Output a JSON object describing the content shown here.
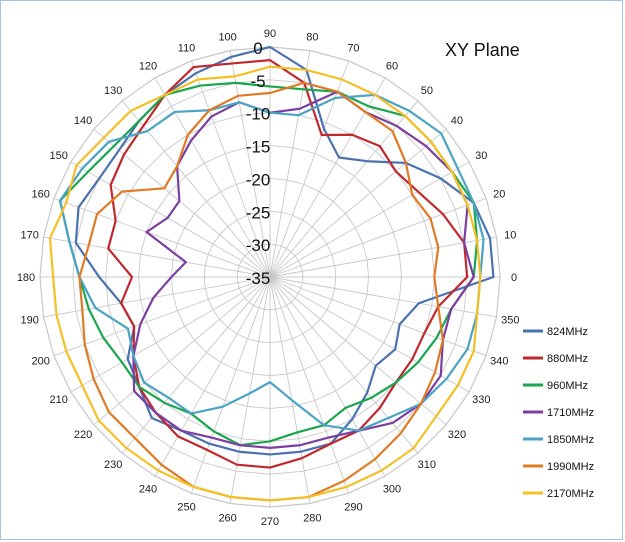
{
  "chart_data": {
    "type": "radar",
    "title": "XY Plane",
    "angles_deg": [
      0,
      10,
      20,
      30,
      40,
      50,
      60,
      70,
      80,
      90,
      100,
      110,
      120,
      130,
      140,
      150,
      160,
      170,
      180,
      190,
      200,
      210,
      220,
      230,
      240,
      250,
      260,
      270,
      280,
      290,
      300,
      310,
      320,
      330,
      340,
      350
    ],
    "angle_tick_labels": [
      "0",
      "10",
      "20",
      "30",
      "40",
      "50",
      "60",
      "70",
      "80",
      "90",
      "100",
      "110",
      "120",
      "130",
      "140",
      "150",
      "160",
      "170",
      "180",
      "190",
      "200",
      "210",
      "220",
      "230",
      "240",
      "250",
      "260",
      "270",
      "280",
      "290",
      "300",
      "310",
      "320",
      "330",
      "340",
      "350"
    ],
    "radial_ticks": [
      0,
      -5,
      -10,
      -15,
      -20,
      -25,
      -30,
      -35
    ],
    "radial_tick_labels": [
      "0",
      "-5",
      "-10",
      "-15",
      "-20",
      "-25",
      "-30",
      "-35"
    ],
    "rlim": [
      -35,
      0
    ],
    "grid": true,
    "legend_position": "bottom-right",
    "series": [
      {
        "name": "824MHz",
        "color": "#4a72b0",
        "values": [
          -1,
          -1,
          -2,
          -5,
          -8,
          -12,
          -14,
          -11,
          -3,
          0,
          -1,
          -2,
          -3,
          -4,
          -5,
          -5,
          -4,
          -5,
          -9,
          -12,
          -13,
          -10,
          -9,
          -7,
          -8,
          -8,
          -8,
          -8,
          -8,
          -8,
          -10,
          -12,
          -14,
          -13,
          -14,
          -12
        ]
      },
      {
        "name": "880MHz",
        "color": "#c0282e",
        "values": [
          -5,
          -5,
          -7,
          -9,
          -10,
          -9,
          -10,
          -12,
          -5,
          -2,
          -2,
          -1,
          -3,
          -5,
          -6,
          -7,
          -10,
          -10,
          -14,
          -12,
          -13,
          -11,
          -9,
          -8,
          -7,
          -7,
          -6,
          -6,
          -7,
          -8,
          -8,
          -9,
          -10,
          -10,
          -10,
          -9
        ]
      },
      {
        "name": "960MHz",
        "color": "#1aa64e",
        "values": [
          -4,
          -3,
          -2,
          -3,
          -3,
          -3,
          -5,
          -5,
          -6,
          -6,
          -5,
          -4,
          -3,
          -4,
          -4,
          -3,
          -1,
          -4,
          -6,
          -7,
          -8,
          -9,
          -9,
          -10,
          -11,
          -10,
          -9,
          -10,
          -11,
          -11,
          -12,
          -11,
          -10,
          -9,
          -8,
          -7
        ]
      },
      {
        "name": "1710MHz",
        "color": "#7b3fa0",
        "values": [
          -4,
          -5,
          -3,
          -3,
          -4,
          -5,
          -6,
          -5,
          -9,
          -10,
          -8,
          -9,
          -11,
          -13,
          -17,
          -17,
          -15,
          -22,
          -20,
          -17,
          -14,
          -11,
          -8,
          -8,
          -8,
          -9,
          -9,
          -9,
          -9,
          -9,
          -8,
          -6,
          -5,
          -5,
          -7,
          -7
        ]
      },
      {
        "name": "1850MHz",
        "color": "#4ba3c3",
        "values": [
          -3,
          -2,
          -2,
          -2,
          -1,
          -2,
          -3,
          -6,
          -10,
          -10,
          -8,
          -8,
          -6,
          -6,
          -3,
          -2,
          -1,
          -4,
          -6,
          -8,
          -12,
          -11,
          -10,
          -11,
          -11,
          -14,
          -17,
          -19,
          -16,
          -11,
          -8,
          -7,
          -5,
          -4,
          -3,
          -3
        ]
      },
      {
        "name": "1990MHz",
        "color": "#e07a24",
        "values": [
          -10,
          -9,
          -9,
          -10,
          -8,
          -6,
          -6,
          -5,
          -5,
          -7,
          -7,
          -8,
          -10,
          -13,
          -14,
          -9,
          -7,
          -7,
          -6,
          -6,
          -5,
          -4,
          -3,
          -3,
          -2,
          -1,
          -1,
          -1,
          -1,
          -2,
          -3,
          -4,
          -5,
          -6,
          -7,
          -9
        ]
      },
      {
        "name": "2170MHz",
        "color": "#f5c026",
        "values": [
          -3,
          -3,
          -3,
          -3,
          -3,
          -3,
          -3,
          -3,
          -3,
          -3,
          -4,
          -3,
          -3,
          -2,
          -2,
          -1,
          -2,
          -1,
          -2,
          -2,
          -2,
          -2,
          -1,
          -1,
          -1,
          -1,
          -1,
          -1,
          -1,
          -1,
          -1,
          -1,
          -2,
          -2,
          -2,
          -3
        ]
      }
    ]
  }
}
